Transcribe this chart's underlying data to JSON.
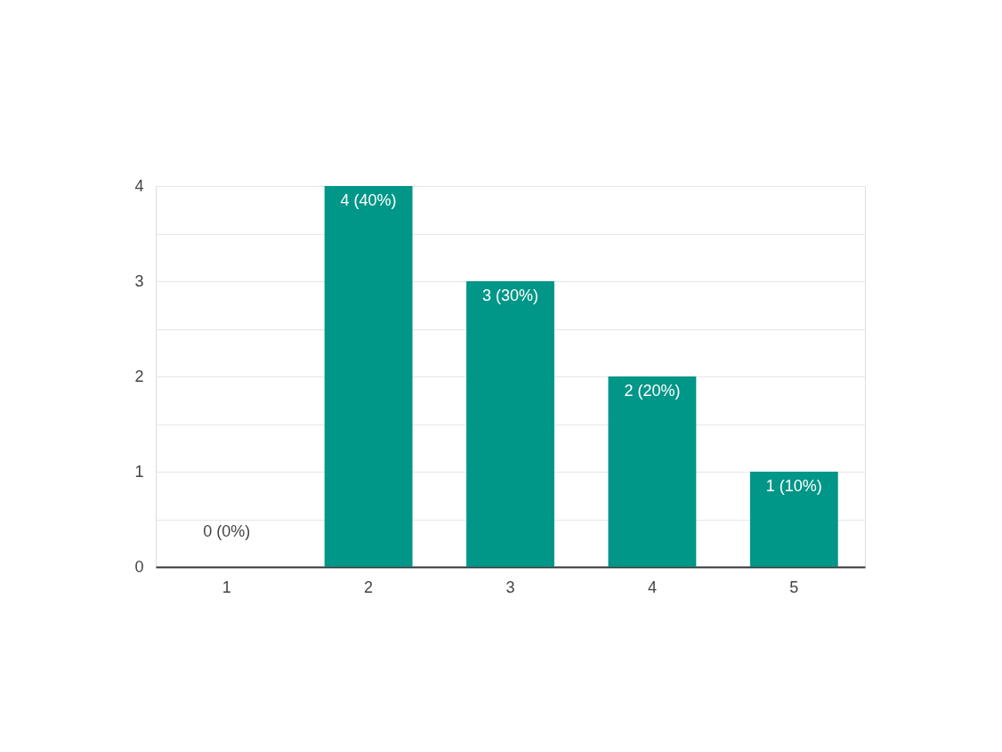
{
  "chart_data": {
    "type": "bar",
    "categories": [
      "1",
      "2",
      "3",
      "4",
      "5"
    ],
    "values": [
      0,
      4,
      3,
      2,
      1
    ],
    "color": "#009688",
    "value_labels": [
      "0 (0%)",
      "4 (40%)",
      "3 (30%)",
      "2 (20%)",
      "1 (10%)"
    ],
    "ylim": [
      0,
      4
    ],
    "yticks": [
      0,
      {
        "value": 0.5,
        "label": null
      },
      1,
      {
        "value": 1.5,
        "label": null
      },
      2,
      {
        "value": 2.5,
        "label": null
      },
      3,
      {
        "value": 3.5,
        "label": null
      },
      4
    ],
    "grid": "y"
  }
}
